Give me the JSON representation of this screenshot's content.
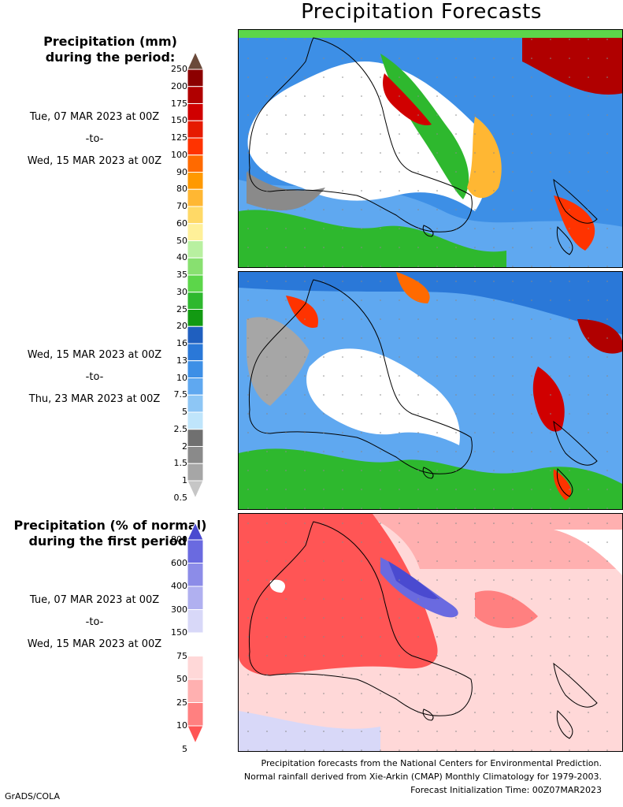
{
  "title": "Precipitation Forecasts",
  "legend_mm": {
    "header_line1": "Precipitation (mm)",
    "header_line2": "during the period:",
    "levels": [
      "250",
      "200",
      "175",
      "150",
      "125",
      "100",
      "90",
      "80",
      "70",
      "60",
      "50",
      "40",
      "35",
      "30",
      "25",
      "20",
      "16",
      "13",
      "10",
      "7.5",
      "5",
      "2.5",
      "2",
      "1.5",
      "1",
      "0.5"
    ],
    "colors": [
      "#6b4a3a",
      "#8c0000",
      "#b00000",
      "#d00000",
      "#e61a00",
      "#ff3300",
      "#ff6a00",
      "#ff9900",
      "#ffb733",
      "#ffd966",
      "#fff099",
      "#b8f0a0",
      "#88e070",
      "#5cd64a",
      "#2eb82e",
      "#129a12",
      "#1f5fbf",
      "#2a78d8",
      "#3d8fe6",
      "#5fa8f0",
      "#8dc6f5",
      "#bfe5fb",
      "#707070",
      "#8a8a8a",
      "#a6a6a6",
      "#c6c6c6"
    ]
  },
  "period1": {
    "start": "Tue, 07 MAR 2023 at 00Z",
    "sep": "-to-",
    "end": "Wed, 15 MAR 2023 at 00Z"
  },
  "period2": {
    "start": "Wed, 15 MAR 2023 at 00Z",
    "sep": "-to-",
    "end": "Thu, 23 MAR 2023 at 00Z"
  },
  "legend_pct": {
    "header_line1": "Precipitation (% of normal)",
    "header_line2": "during the first period:",
    "levels": [
      "800",
      "600",
      "400",
      "300",
      "150",
      "75",
      "50",
      "25",
      "10",
      "5"
    ],
    "colors": [
      "#4a4ad0",
      "#6a6ae0",
      "#8c8ce8",
      "#b0b0f0",
      "#d8d8f8",
      "#ffffff",
      "#ffd8d8",
      "#ffb0b0",
      "#ff8080",
      "#ff5555"
    ]
  },
  "period3": {
    "start": "Tue, 07 MAR 2023 at 00Z",
    "sep": "-to-",
    "end": "Wed, 15 MAR 2023 at 00Z"
  },
  "footer": {
    "line1": "Precipitation forecasts from the National Centers for Environmental Prediction.",
    "line2": "Normal rainfall derived from Xie-Arkin (CMAP) Monthly Climatology for 1979-2003.",
    "line3": "Forecast Initialization Time: 00Z07MAR2023"
  },
  "credit": "GrADS/COLA"
}
